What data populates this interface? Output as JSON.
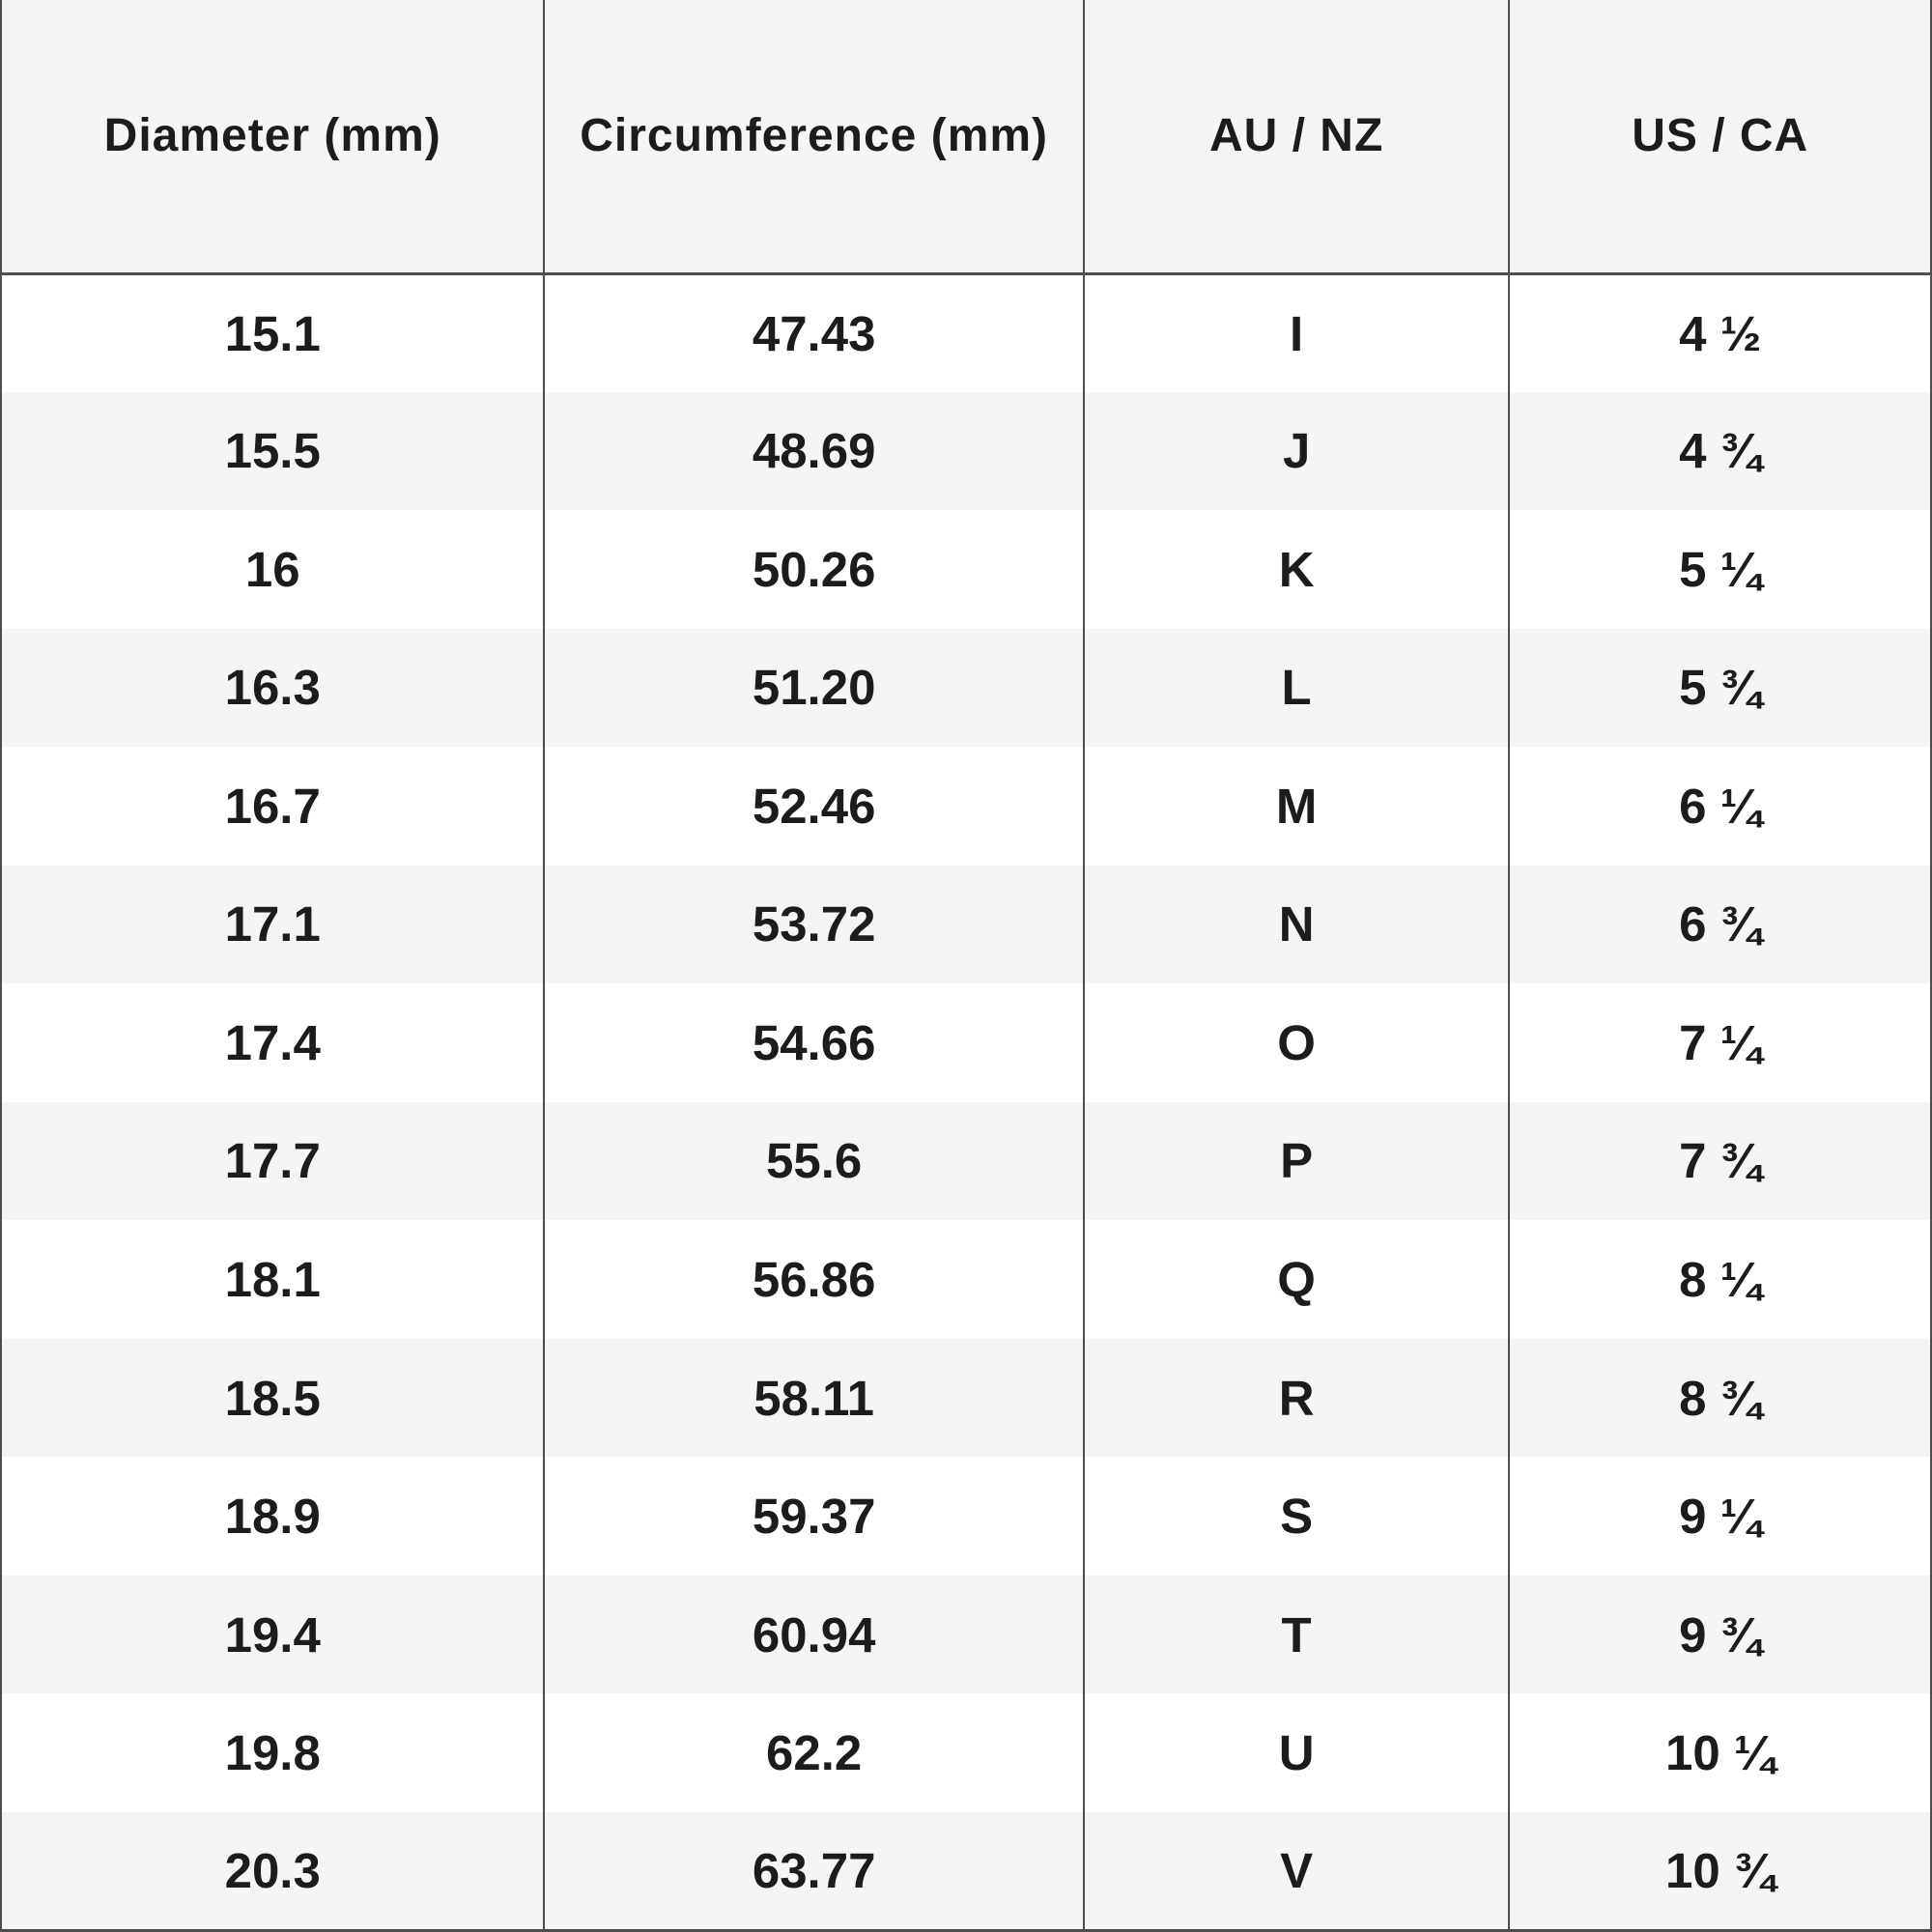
{
  "chart_data": {
    "type": "table",
    "title": "",
    "columns": [
      "Diameter (mm)",
      "Circumference (mm)",
      "AU / NZ",
      "US / CA"
    ],
    "rows": [
      [
        "15.1",
        "47.43",
        "I",
        "4 ½"
      ],
      [
        "15.5",
        "48.69",
        "J",
        "4 ¾"
      ],
      [
        "16",
        "50.26",
        "K",
        "5 ¼"
      ],
      [
        "16.3",
        "51.20",
        "L",
        "5 ¾"
      ],
      [
        "16.7",
        "52.46",
        "M",
        "6 ¼"
      ],
      [
        "17.1",
        "53.72",
        "N",
        "6 ¾"
      ],
      [
        "17.4",
        "54.66",
        "O",
        "7 ¼"
      ],
      [
        "17.7",
        "55.6",
        "P",
        "7 ¾"
      ],
      [
        "18.1",
        "56.86",
        "Q",
        "8 ¼"
      ],
      [
        "18.5",
        "58.11",
        "R",
        "8 ¾"
      ],
      [
        "18.9",
        "59.37",
        "S",
        "9 ¼"
      ],
      [
        "19.4",
        "60.94",
        "T",
        "9 ¾"
      ],
      [
        "19.8",
        "62.2",
        "U",
        "10 ¼"
      ],
      [
        "20.3",
        "63.77",
        "V",
        "10 ¾"
      ]
    ],
    "layout": {
      "striped_rows": true,
      "row_lines": false,
      "column_lines": true,
      "top_border": false
    }
  },
  "colors": {
    "header_bg": "#f5f5f5",
    "stripe_bg": "#f5f5f5",
    "row_bg": "#ffffff",
    "border": "#4d4d4d",
    "text": "#1c1c1c"
  }
}
